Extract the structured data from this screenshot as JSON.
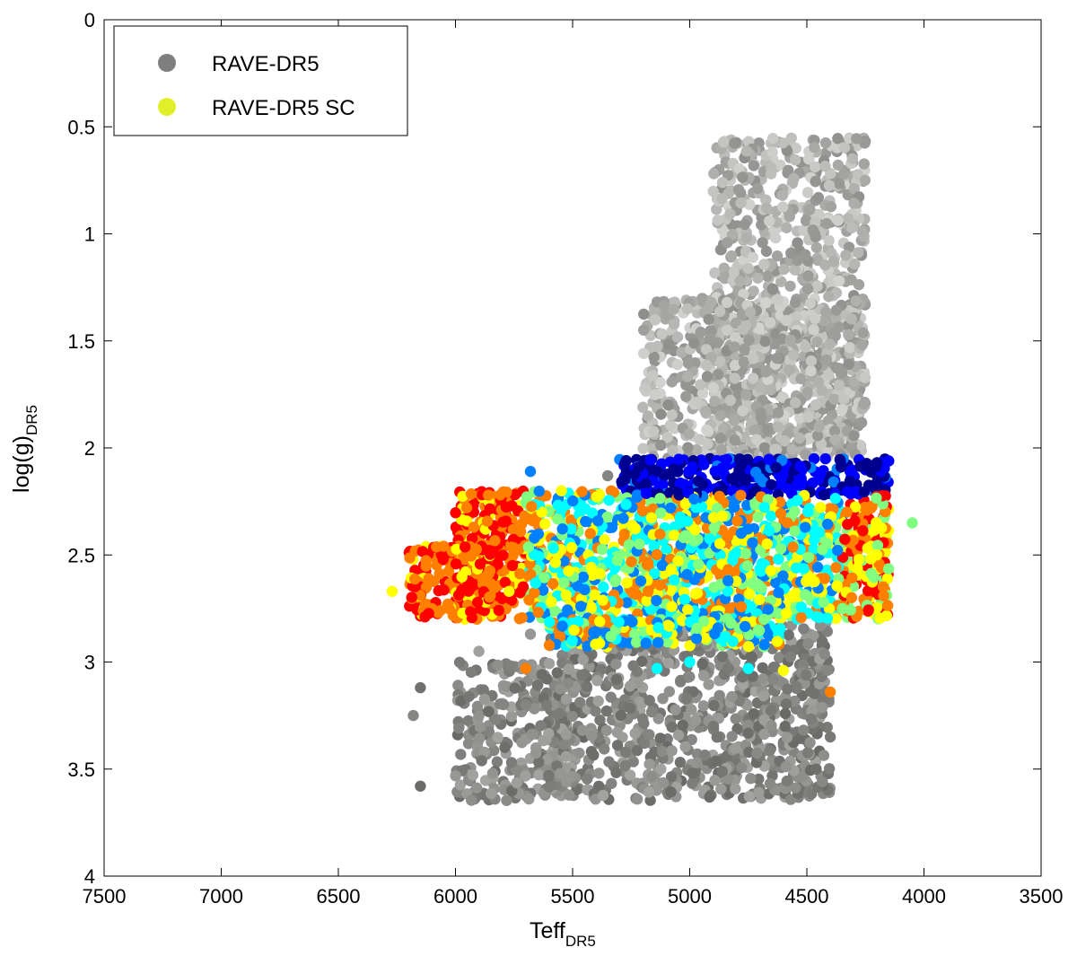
{
  "chart_data": {
    "type": "scatter",
    "xlabel": "Teff",
    "xlabel_sub": "DR5",
    "ylabel": "log(g)",
    "ylabel_sub": "DR5",
    "xlim": [
      7500,
      3500
    ],
    "x_reversed": true,
    "ylim": [
      0,
      4
    ],
    "y_reversed": true,
    "xticks": [
      7500,
      7000,
      6500,
      6000,
      5500,
      5000,
      4500,
      4000,
      3500
    ],
    "yticks": [
      0,
      0.5,
      1,
      1.5,
      2,
      2.5,
      3,
      3.5,
      4
    ],
    "ytick_labels": [
      "0",
      "0.5",
      "1",
      "1.5",
      "2",
      "2.5",
      "3",
      "3.5",
      "4"
    ],
    "grid": false,
    "legend_position": "top-left",
    "legend": [
      {
        "name": "RAVE-DR5",
        "color": "#7f7f7f"
      },
      {
        "name": "RAVE-DR5 SC",
        "color": "#e0ef2a"
      }
    ],
    "series": [
      {
        "name": "RAVE-DR5",
        "color_scheme": "grayscale",
        "regions": [
          {
            "teff_min": 4250,
            "teff_max": 4900,
            "logg_min": 0.55,
            "logg_max": 2.05
          },
          {
            "teff_min": 4250,
            "teff_max": 5200,
            "logg_min": 1.3,
            "logg_max": 2.05
          },
          {
            "teff_min": 4400,
            "teff_max": 5600,
            "logg_min": 2.8,
            "logg_max": 3.65
          },
          {
            "teff_min": 5500,
            "teff_max": 6000,
            "logg_min": 3.0,
            "logg_max": 3.65
          }
        ],
        "outliers": [
          {
            "teff": 6150,
            "logg": 3.12
          },
          {
            "teff": 6180,
            "logg": 3.25
          },
          {
            "teff": 6150,
            "logg": 3.58
          },
          {
            "teff": 5900,
            "logg": 2.95
          },
          {
            "teff": 5680,
            "logg": 2.87
          },
          {
            "teff": 5200,
            "logg": 1.81
          },
          {
            "teff": 5350,
            "logg": 2.13
          },
          {
            "teff": 5090,
            "logg": 1.52
          },
          {
            "teff": 5010,
            "logg": 1.35
          },
          {
            "teff": 4860,
            "logg": 0.76
          },
          {
            "teff": 4460,
            "logg": 3.5
          },
          {
            "teff": 4400,
            "logg": 3.35
          }
        ]
      },
      {
        "name": "RAVE-DR5 SC",
        "color_scheme": "jet",
        "regions": [
          {
            "teff_min": 4150,
            "teff_max": 5300,
            "logg_min": 2.05,
            "logg_max": 2.2
          },
          {
            "teff_min": 4150,
            "teff_max": 6000,
            "logg_min": 2.2,
            "logg_max": 2.8
          },
          {
            "teff_min": 4600,
            "teff_max": 5600,
            "logg_min": 2.8,
            "logg_max": 2.93
          },
          {
            "teff_min": 5850,
            "teff_max": 6200,
            "logg_min": 2.45,
            "logg_max": 2.8
          }
        ],
        "outliers": [
          {
            "teff": 6270,
            "logg": 2.67
          },
          {
            "teff": 5680,
            "logg": 2.11
          },
          {
            "teff": 5700,
            "logg": 3.03
          },
          {
            "teff": 5000,
            "logg": 3.0
          },
          {
            "teff": 4750,
            "logg": 3.03
          },
          {
            "teff": 4600,
            "logg": 3.04
          },
          {
            "teff": 4400,
            "logg": 3.14
          },
          {
            "teff": 4050,
            "logg": 2.35
          },
          {
            "teff": 5140,
            "logg": 3.03
          }
        ]
      }
    ]
  }
}
